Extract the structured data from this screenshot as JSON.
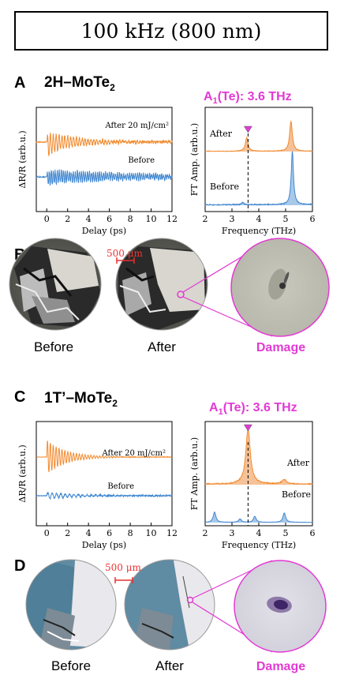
{
  "header": {
    "title": "100 kHz (800 nm)"
  },
  "panels": {
    "A": {
      "letter": "A",
      "sample": "2H–MoTe",
      "sample_sub": "2",
      "mode": "A",
      "mode_sub": "1",
      "mode_rest": "(Te): 3.6 THz"
    },
    "B": {
      "letter": "B",
      "scalebar": "500 μm",
      "before": "Before",
      "after": "After",
      "damage": "Damage"
    },
    "C": {
      "letter": "C",
      "sample": "1T’–MoTe",
      "sample_sub": "2",
      "mode": "A",
      "mode_sub": "1",
      "mode_rest": "(Te): 3.6 THz"
    },
    "D": {
      "letter": "D",
      "scalebar": "500 μm",
      "before": "Before",
      "after": "After",
      "damage": "Damage"
    }
  },
  "colors": {
    "after": "#f28a2e",
    "before": "#3f86d0",
    "accent": "#e23ad4",
    "scalebar": "#e83030"
  },
  "chart_data": [
    {
      "type": "line",
      "panel": "A-left",
      "xlabel": "Delay (ps)",
      "ylabel": "ΔR/R (arb.u.)",
      "xlim": [
        -1,
        12
      ],
      "xticks": [
        0,
        2,
        4,
        6,
        8,
        10,
        12
      ],
      "series": [
        {
          "name": "After 20 mJ/cm²",
          "color": "#f28a2e"
        },
        {
          "name": "Before",
          "color": "#3f86d0"
        }
      ]
    },
    {
      "type": "area",
      "panel": "A-right",
      "xlabel": "Frequency (THz)",
      "ylabel": "FT Amp. (arb.u.)",
      "xlim": [
        2,
        6
      ],
      "xticks": [
        2,
        3,
        4,
        5,
        6
      ],
      "marker_x": 3.6,
      "series": [
        {
          "name": "After",
          "peaks": [
            [
              3.55,
              0.45
            ],
            [
              5.2,
              1.0
            ]
          ]
        },
        {
          "name": "Before",
          "peaks": [
            [
              5.25,
              1.0
            ],
            [
              3.4,
              0.04
            ]
          ]
        }
      ]
    },
    {
      "type": "line",
      "panel": "C-left",
      "xlabel": "Delay (ps)",
      "ylabel": "ΔR/R (arb.u.)",
      "xlim": [
        -1,
        12
      ],
      "xticks": [
        0,
        2,
        4,
        6,
        8,
        10,
        12
      ],
      "series": [
        {
          "name": "After 20 mJ/cm²",
          "color": "#f28a2e"
        },
        {
          "name": "Before",
          "color": "#3f86d0"
        }
      ]
    },
    {
      "type": "area",
      "panel": "C-right",
      "xlabel": "Frequency (THz)",
      "ylabel": "FT Amp. (arb.u.)",
      "xlim": [
        2,
        6
      ],
      "xticks": [
        2,
        3,
        4,
        5,
        6
      ],
      "marker_x": 3.6,
      "series": [
        {
          "name": "After",
          "peaks": [
            [
              3.6,
              1.0
            ],
            [
              4.95,
              0.08
            ]
          ]
        },
        {
          "name": "Before",
          "peaks": [
            [
              2.35,
              0.6
            ],
            [
              3.3,
              0.2
            ],
            [
              3.85,
              0.35
            ],
            [
              4.95,
              0.55
            ]
          ]
        }
      ]
    }
  ]
}
